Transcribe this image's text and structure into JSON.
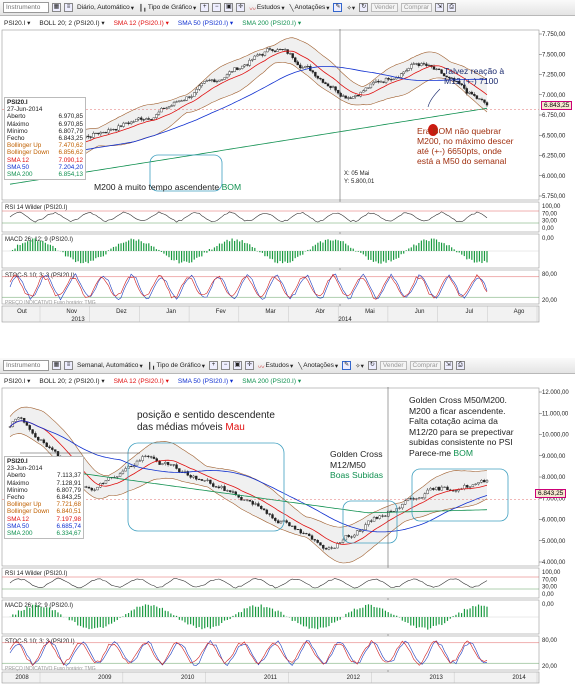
{
  "top": {
    "toolbar": {
      "instrument_placeholder": "Instrumento",
      "period": "Diário, Automático",
      "chart_type": "Tipo de Gráfico",
      "studies": "Estudos",
      "annotations": "Anotações",
      "sell": "Vender",
      "buy": "Comprar"
    },
    "legend": [
      "PSI20.I",
      "BOLL 20; 2 (PSI20.I)",
      "SMA 12 (PSI20.I)",
      "SMA 50 (PSI20.I)",
      "SMA 200 (PSI20.I)"
    ],
    "price_axis": [
      "7.750,00",
      "7.500,00",
      "7.250,00",
      "7.000,00",
      "6.750,00",
      "6.500,00",
      "6.250,00",
      "6.000,00",
      "5.750,00"
    ],
    "last_price": "6.843,25",
    "rsi_label": "RSI 14 Wilder (PSI20.I)",
    "rsi_axis": [
      "100,00",
      "70,00",
      "30,00",
      "0,00"
    ],
    "macd_label": "MACD 26; 12; 9 (PSI20.I)",
    "macd_axis": [
      "0,00"
    ],
    "stoch_label": "STOC-S 10; 3; 3 (PSI20.I)",
    "stoch_axis": [
      "80,00",
      "20,00"
    ],
    "watermark": "PREÇO INDICATIVO  Fuso horário: TMG",
    "months": [
      "Out",
      "Nov",
      "Dez",
      "Jan",
      "Fev",
      "Mar",
      "Abr",
      "Mai",
      "Jun",
      "Jul",
      "Ago"
    ],
    "years": [
      "2013",
      "2014"
    ],
    "crosshair": {
      "x": "X: 05 Mai",
      "y": "Y: 5.800,01"
    },
    "info": {
      "title": "PSI20.I",
      "date": "27-Jun-2014",
      "rows": [
        {
          "k": "Aberto",
          "v": "6.970,85",
          "c": "#222"
        },
        {
          "k": "Máximo",
          "v": "6.970,85",
          "c": "#222"
        },
        {
          "k": "Mínimo",
          "v": "6.807,79",
          "c": "#222"
        },
        {
          "k": "Fecho",
          "v": "6.843,25",
          "c": "#222"
        },
        {
          "k": "Bollinger Up",
          "v": "7.470,62",
          "c": "#c06000"
        },
        {
          "k": "Bollinger Down",
          "v": "6.856,62",
          "c": "#c06000"
        },
        {
          "k": "SMA 12",
          "v": "7.090,12",
          "c": "#e01010"
        },
        {
          "k": "SMA 50",
          "v": "7.204,20",
          "c": "#1030d0"
        },
        {
          "k": "SMA 200",
          "v": "6.854,13",
          "c": "#109050"
        }
      ]
    },
    "note_right": "Talvez reação à\nM12 (+-) 7100",
    "note_brown": "Era BOM não quebrar\nM200, no máximo descer\naté (+-) 6650pts, onde\nestá a M50 do semanal",
    "note_bottom_prefix": "M200 à muito tempo ascendente ",
    "note_bottom_good": "BOM"
  },
  "bottom": {
    "toolbar": {
      "instrument_placeholder": "Instrumento",
      "period": "Semanal, Automático",
      "chart_type": "Tipo de Gráfico",
      "studies": "Estudos",
      "annotations": "Anotações",
      "sell": "Vender",
      "buy": "Comprar"
    },
    "legend": [
      "PSI20.I",
      "BOLL 20; 2 (PSI20.I)",
      "SMA 12 (PSI20.I)",
      "SMA 50 (PSI20.I)",
      "SMA 200 (PSI20.I)"
    ],
    "price_axis": [
      "12.000,00",
      "11.000,00",
      "10.000,00",
      "9.000,00",
      "8.000,00",
      "7.000,00",
      "6.000,00",
      "5.000,00",
      "4.000,00"
    ],
    "last_price": "6.843,25",
    "rsi_label": "RSI 14 Wilder (PSI20.I)",
    "rsi_axis": [
      "100,00",
      "70,00",
      "30,00",
      "0,00"
    ],
    "macd_label": "MACD 26; 12; 9 (PSI20.I)",
    "macd_axis": [
      "0,00"
    ],
    "stoch_label": "STOC-S 10; 3; 3 (PSI20.I)",
    "stoch_axis": [
      "80,00",
      "20,00"
    ],
    "watermark": "PREÇO INDICATIVO  Fuso horário: TMG",
    "years": [
      "2008",
      "2009",
      "2010",
      "2011",
      "2012",
      "2013",
      "2014"
    ],
    "info": {
      "title": "PSI20.I",
      "date": "23-Jun-2014",
      "rows": [
        {
          "k": "Aberto",
          "v": "7.113,37",
          "c": "#222"
        },
        {
          "k": "Máximo",
          "v": "7.128,91",
          "c": "#222"
        },
        {
          "k": "Mínimo",
          "v": "6.807,79",
          "c": "#222"
        },
        {
          "k": "Fecho",
          "v": "6.843,25",
          "c": "#222"
        },
        {
          "k": "Bollinger Up",
          "v": "7.721,68",
          "c": "#c06000"
        },
        {
          "k": "Bollinger Down",
          "v": "6.840,51",
          "c": "#c06000"
        },
        {
          "k": "SMA 12",
          "v": "7.197,98",
          "c": "#e01010"
        },
        {
          "k": "SMA 50",
          "v": "6.685,74",
          "c": "#1030d0"
        },
        {
          "k": "SMA 200",
          "v": "6.334,67",
          "c": "#109050"
        }
      ]
    },
    "note_left_text": "posição e sentido descendente\ndas médias móveis ",
    "note_left_bad": "Mau",
    "note_mid_title": "Golden Cross\nM12/M50",
    "note_mid_good": "Boas Subidas",
    "note_right_text": "Golden Cross M50/M200.\nM200 a ficar ascendente.\nFalta cotação acima da\nM12/20 para se prepectivar\nsubidas consistente no PSI\nParece-me ",
    "note_right_good": "BOM"
  },
  "colors": {
    "sma12": "#e01010",
    "sma50": "#1030d0",
    "sma200": "#109050",
    "bollinger": "#a06030",
    "good": "#109050",
    "bad": "#e01010",
    "brown_note": "#a03010"
  }
}
